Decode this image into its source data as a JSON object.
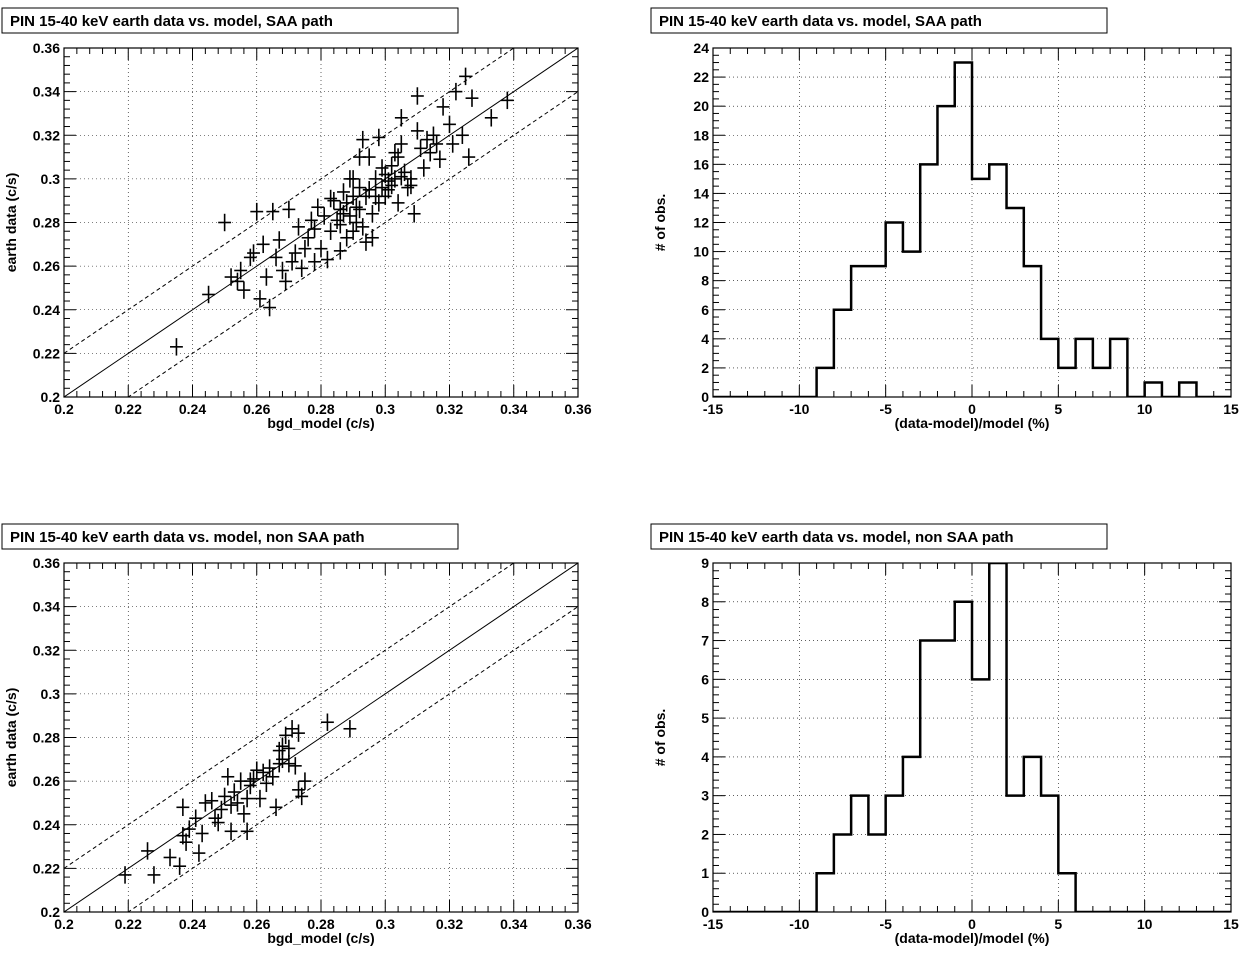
{
  "chart_data": [
    {
      "type": "scatter",
      "title": "PIN 15-40 keV earth data vs. model, SAA path",
      "xlabel": "bgd_model (c/s)",
      "ylabel": "earth data (c/s)",
      "xlim": [
        0.2,
        0.36
      ],
      "ylim": [
        0.2,
        0.36
      ],
      "xticks": [
        "0.2",
        "0.22",
        "0.24",
        "0.26",
        "0.28",
        "0.3",
        "0.32",
        "0.34",
        "0.36"
      ],
      "yticks": [
        "0.2",
        "0.22",
        "0.24",
        "0.26",
        "0.28",
        "0.3",
        "0.32",
        "0.34",
        "0.36"
      ],
      "grid": true,
      "lines": [
        {
          "style": "solid",
          "intercept": 0.0
        },
        {
          "style": "dashed",
          "intercept": 0.02
        },
        {
          "style": "dashed",
          "intercept": -0.02
        }
      ],
      "point_errors": {
        "x": 0.002,
        "y": 0.004
      },
      "points": [
        [
          0.235,
          0.223
        ],
        [
          0.245,
          0.247
        ],
        [
          0.25,
          0.28
        ],
        [
          0.252,
          0.255
        ],
        [
          0.254,
          0.253
        ],
        [
          0.255,
          0.258
        ],
        [
          0.256,
          0.249
        ],
        [
          0.258,
          0.264
        ],
        [
          0.259,
          0.266
        ],
        [
          0.26,
          0.285
        ],
        [
          0.261,
          0.245
        ],
        [
          0.262,
          0.27
        ],
        [
          0.263,
          0.255
        ],
        [
          0.264,
          0.241
        ],
        [
          0.265,
          0.285
        ],
        [
          0.266,
          0.264
        ],
        [
          0.267,
          0.272
        ],
        [
          0.268,
          0.258
        ],
        [
          0.269,
          0.253
        ],
        [
          0.27,
          0.286
        ],
        [
          0.271,
          0.262
        ],
        [
          0.272,
          0.266
        ],
        [
          0.273,
          0.278
        ],
        [
          0.274,
          0.259
        ],
        [
          0.275,
          0.268
        ],
        [
          0.276,
          0.273
        ],
        [
          0.277,
          0.281
        ],
        [
          0.278,
          0.277
        ],
        [
          0.279,
          0.287
        ],
        [
          0.28,
          0.268
        ],
        [
          0.281,
          0.283
        ],
        [
          0.282,
          0.263
        ],
        [
          0.283,
          0.276
        ],
        [
          0.284,
          0.29
        ],
        [
          0.285,
          0.281
        ],
        [
          0.286,
          0.286
        ],
        [
          0.286,
          0.279
        ],
        [
          0.287,
          0.284
        ],
        [
          0.287,
          0.294
        ],
        [
          0.288,
          0.273
        ],
        [
          0.288,
          0.289
        ],
        [
          0.289,
          0.3
        ],
        [
          0.289,
          0.283
        ],
        [
          0.29,
          0.276
        ],
        [
          0.29,
          0.292
        ],
        [
          0.291,
          0.287
        ],
        [
          0.291,
          0.28
        ],
        [
          0.292,
          0.296
        ],
        [
          0.292,
          0.286
        ],
        [
          0.293,
          0.278
        ],
        [
          0.293,
          0.318
        ],
        [
          0.294,
          0.292
        ],
        [
          0.294,
          0.271
        ],
        [
          0.295,
          0.31
        ],
        [
          0.295,
          0.295
        ],
        [
          0.296,
          0.284
        ],
        [
          0.297,
          0.3
        ],
        [
          0.297,
          0.292
        ],
        [
          0.298,
          0.289
        ],
        [
          0.299,
          0.305
        ],
        [
          0.299,
          0.296
        ],
        [
          0.3,
          0.302
        ],
        [
          0.3,
          0.292
        ],
        [
          0.301,
          0.299
        ],
        [
          0.302,
          0.297
        ],
        [
          0.302,
          0.306
        ],
        [
          0.303,
          0.3
        ],
        [
          0.304,
          0.289
        ],
        [
          0.304,
          0.31
        ],
        [
          0.305,
          0.301
        ],
        [
          0.305,
          0.316
        ],
        [
          0.306,
          0.303
        ],
        [
          0.307,
          0.296
        ],
        [
          0.308,
          0.3
        ],
        [
          0.309,
          0.284
        ],
        [
          0.31,
          0.322
        ],
        [
          0.311,
          0.314
        ],
        [
          0.312,
          0.305
        ],
        [
          0.313,
          0.318
        ],
        [
          0.314,
          0.312
        ],
        [
          0.315,
          0.32
        ],
        [
          0.316,
          0.316
        ],
        [
          0.317,
          0.309
        ],
        [
          0.318,
          0.333
        ],
        [
          0.32,
          0.325
        ],
        [
          0.321,
          0.316
        ],
        [
          0.322,
          0.34
        ],
        [
          0.324,
          0.32
        ],
        [
          0.326,
          0.31
        ],
        [
          0.327,
          0.337
        ],
        [
          0.325,
          0.347
        ],
        [
          0.333,
          0.328
        ],
        [
          0.338,
          0.336
        ],
        [
          0.31,
          0.338
        ],
        [
          0.305,
          0.328
        ],
        [
          0.298,
          0.319
        ],
        [
          0.29,
          0.3
        ],
        [
          0.283,
          0.291
        ],
        [
          0.296,
          0.273
        ],
        [
          0.301,
          0.295
        ],
        [
          0.303,
          0.312
        ],
        [
          0.308,
          0.297
        ],
        [
          0.292,
          0.31
        ],
        [
          0.286,
          0.267
        ],
        [
          0.278,
          0.262
        ]
      ]
    },
    {
      "type": "histogram",
      "title": "PIN 15-40 keV earth data vs. model, SAA path",
      "xlabel": "(data-model)/model (%)",
      "ylabel": "# of obs.",
      "xlim": [
        -15,
        15
      ],
      "ylim": [
        0,
        24
      ],
      "xticks": [
        "-15",
        "-10",
        "-5",
        "0",
        "5",
        "10",
        "15"
      ],
      "yticks": [
        "0",
        "2",
        "4",
        "6",
        "8",
        "10",
        "12",
        "14",
        "16",
        "18",
        "20",
        "22",
        "24"
      ],
      "grid": true,
      "bin_width": 1,
      "bins_start": -15,
      "counts": [
        0,
        0,
        0,
        0,
        0,
        0,
        2,
        6,
        9,
        9,
        12,
        10,
        16,
        20,
        23,
        15,
        16,
        13,
        9,
        4,
        2,
        4,
        2,
        4,
        0,
        1,
        0,
        1,
        0,
        0
      ]
    },
    {
      "type": "scatter",
      "title": "PIN 15-40 keV earth data vs. model, non SAA path",
      "xlabel": "bgd_model (c/s)",
      "ylabel": "earth data (c/s)",
      "xlim": [
        0.2,
        0.36
      ],
      "ylim": [
        0.2,
        0.36
      ],
      "xticks": [
        "0.2",
        "0.22",
        "0.24",
        "0.26",
        "0.28",
        "0.3",
        "0.32",
        "0.34",
        "0.36"
      ],
      "yticks": [
        "0.2",
        "0.22",
        "0.24",
        "0.26",
        "0.28",
        "0.3",
        "0.32",
        "0.34",
        "0.36"
      ],
      "grid": true,
      "lines": [
        {
          "style": "solid",
          "intercept": 0.0
        },
        {
          "style": "dashed",
          "intercept": 0.02
        },
        {
          "style": "dashed",
          "intercept": -0.02
        }
      ],
      "point_errors": {
        "x": 0.002,
        "y": 0.004
      },
      "points": [
        [
          0.219,
          0.217
        ],
        [
          0.226,
          0.228
        ],
        [
          0.228,
          0.217
        ],
        [
          0.233,
          0.225
        ],
        [
          0.236,
          0.221
        ],
        [
          0.237,
          0.235
        ],
        [
          0.237,
          0.248
        ],
        [
          0.238,
          0.232
        ],
        [
          0.239,
          0.238
        ],
        [
          0.241,
          0.243
        ],
        [
          0.242,
          0.227
        ],
        [
          0.243,
          0.236
        ],
        [
          0.244,
          0.25
        ],
        [
          0.247,
          0.243
        ],
        [
          0.248,
          0.241
        ],
        [
          0.249,
          0.247
        ],
        [
          0.25,
          0.253
        ],
        [
          0.251,
          0.262
        ],
        [
          0.252,
          0.237
        ],
        [
          0.252,
          0.249
        ],
        [
          0.253,
          0.255
        ],
        [
          0.254,
          0.25
        ],
        [
          0.255,
          0.26
        ],
        [
          0.256,
          0.245
        ],
        [
          0.257,
          0.237
        ],
        [
          0.257,
          0.252
        ],
        [
          0.258,
          0.258
        ],
        [
          0.259,
          0.261
        ],
        [
          0.26,
          0.265
        ],
        [
          0.261,
          0.252
        ],
        [
          0.262,
          0.264
        ],
        [
          0.263,
          0.259
        ],
        [
          0.264,
          0.266
        ],
        [
          0.265,
          0.262
        ],
        [
          0.266,
          0.248
        ],
        [
          0.267,
          0.268
        ],
        [
          0.267,
          0.274
        ],
        [
          0.268,
          0.276
        ],
        [
          0.268,
          0.27
        ],
        [
          0.269,
          0.281
        ],
        [
          0.27,
          0.275
        ],
        [
          0.27,
          0.268
        ],
        [
          0.271,
          0.284
        ],
        [
          0.272,
          0.267
        ],
        [
          0.273,
          0.282
        ],
        [
          0.273,
          0.256
        ],
        [
          0.274,
          0.253
        ],
        [
          0.275,
          0.26
        ],
        [
          0.282,
          0.287
        ],
        [
          0.289,
          0.284
        ],
        [
          0.246,
          0.251
        ],
        [
          0.258,
          0.26
        ]
      ]
    },
    {
      "type": "histogram",
      "title": "PIN 15-40 keV earth data vs. model, non SAA path",
      "xlabel": "(data-model)/model (%)",
      "ylabel": "# of obs.",
      "xlim": [
        -15,
        15
      ],
      "ylim": [
        0,
        9
      ],
      "xticks": [
        "-15",
        "-10",
        "-5",
        "0",
        "5",
        "10",
        "15"
      ],
      "yticks": [
        "0",
        "1",
        "2",
        "3",
        "4",
        "5",
        "6",
        "7",
        "8",
        "9"
      ],
      "grid": true,
      "bin_width": 1,
      "bins_start": -15,
      "counts": [
        0,
        0,
        0,
        0,
        0,
        0,
        1,
        2,
        3,
        2,
        3,
        4,
        7,
        7,
        8,
        6,
        9,
        3,
        4,
        3,
        1,
        0,
        0,
        0,
        0,
        0,
        0,
        0,
        0,
        0
      ]
    }
  ]
}
